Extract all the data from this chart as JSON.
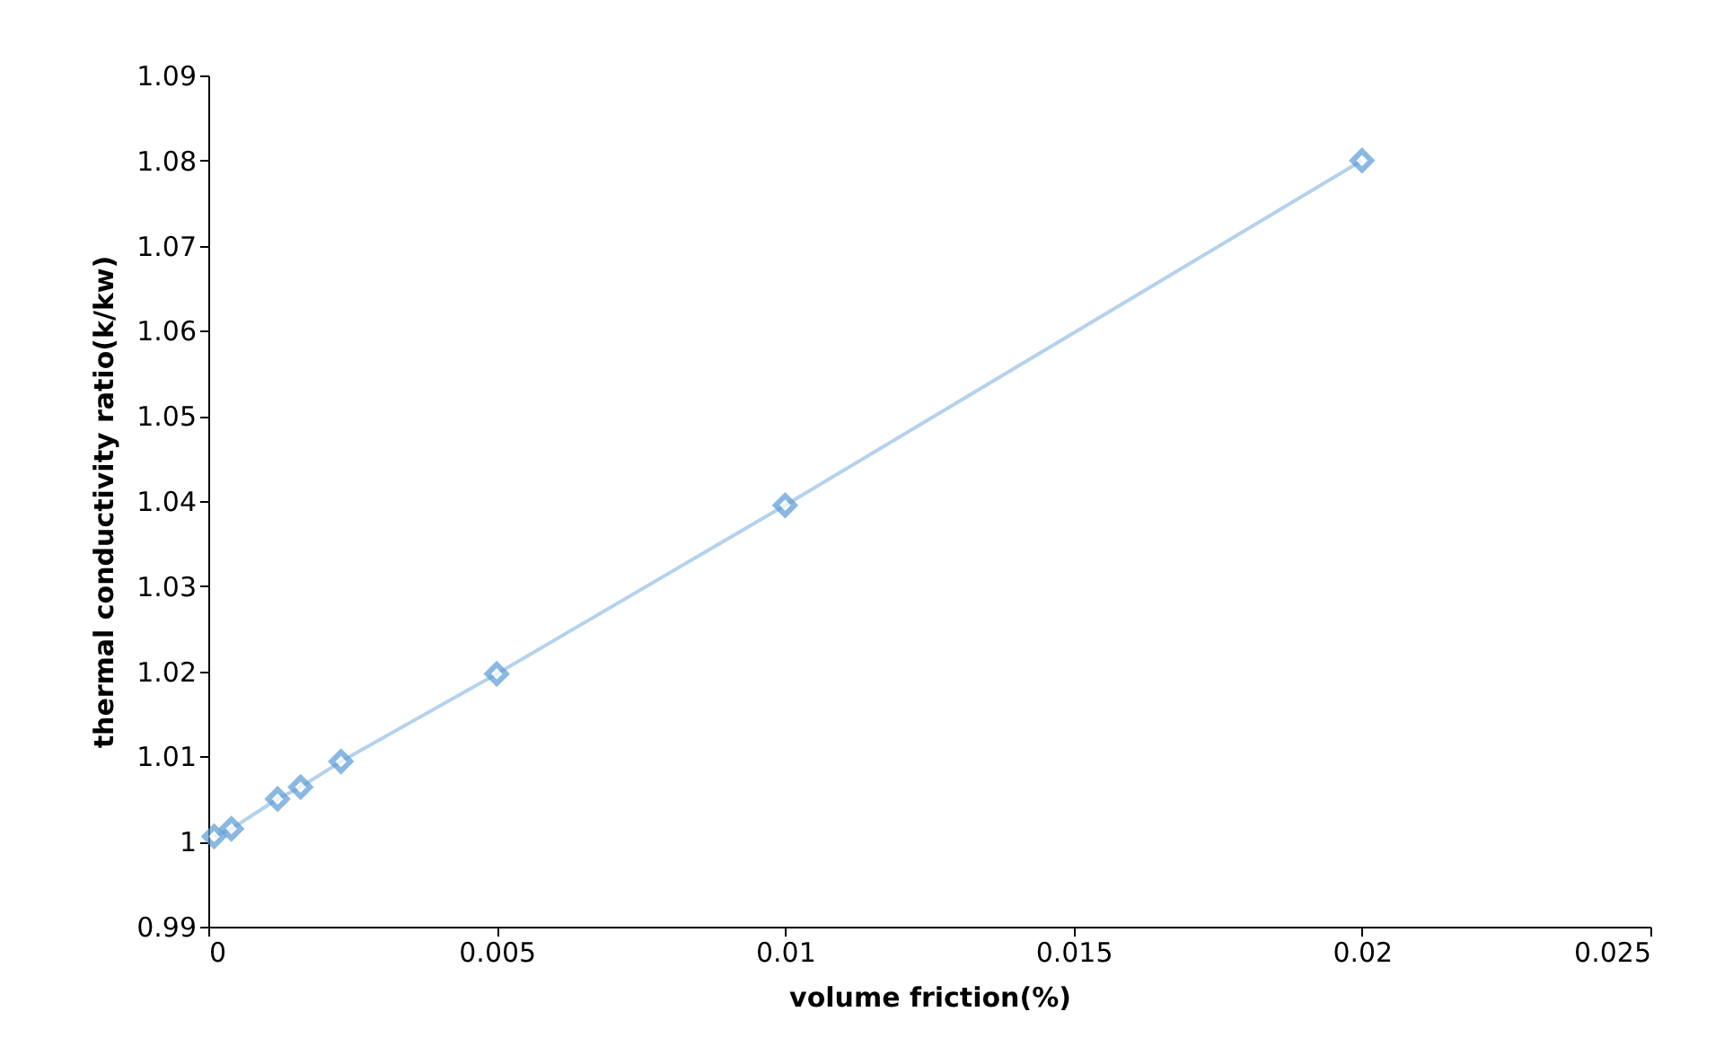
{
  "chart_data": {
    "type": "line",
    "xlabel": "volume friction(%)",
    "ylabel": "thermal conductivity ratio(k/kw)",
    "x": [
      0.0001,
      0.0004,
      0.0012,
      0.0016,
      0.0023,
      0.005,
      0.01,
      0.02
    ],
    "series": [
      {
        "color": "#5b9bd5",
        "values": [
          1.0006,
          1.0015,
          1.005,
          1.0064,
          1.0094,
          1.0197,
          1.0395,
          1.08
        ]
      }
    ],
    "xlim": [
      0,
      0.025
    ],
    "xticks": [
      0,
      0.005,
      0.01,
      0.015,
      0.02,
      0.025
    ],
    "ylim": [
      0.99,
      1.09
    ],
    "yticks": [
      0.99,
      1,
      1.01,
      1.02,
      1.03,
      1.04,
      1.05,
      1.06,
      1.07,
      1.08,
      1.09
    ],
    "marker": "diamond",
    "line_style": "solid",
    "grid": false,
    "legend": false
  }
}
